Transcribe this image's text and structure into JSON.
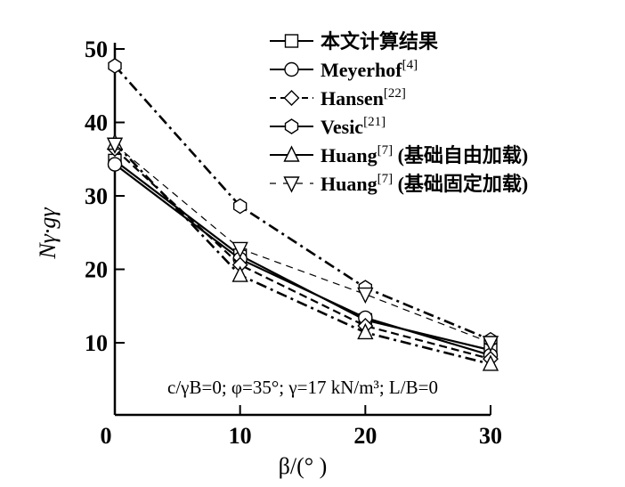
{
  "chart_data": {
    "type": "line",
    "title": "",
    "xlabel": "β/(° )",
    "ylabel": "Nγ·gγ",
    "x": [
      0,
      10,
      20,
      30
    ],
    "xlim": [
      0,
      30
    ],
    "ylim": [
      3,
      50
    ],
    "xticks": [
      "0",
      "10",
      "20",
      "30"
    ],
    "yticks": [
      "10",
      "20",
      "30",
      "40",
      "50"
    ],
    "grid": false,
    "legend_position": "top-right",
    "annotation": "c/γB=0; φ=35°; γ=17 kN/m³; L/B=0",
    "series": [
      {
        "name": "本文计算结果",
        "ref": "",
        "suffix": "",
        "marker": "square",
        "style": "solid",
        "values": [
          34.8,
          21.9,
          13.1,
          9.0
        ]
      },
      {
        "name": "Meyerhof",
        "ref": "[4]",
        "suffix": "",
        "marker": "circle",
        "style": "solid",
        "values": [
          34.3,
          21.4,
          13.4,
          8.3
        ]
      },
      {
        "name": "Hansen",
        "ref": "[22]",
        "suffix": "",
        "marker": "diamond",
        "style": "dashed",
        "values": [
          36.4,
          20.6,
          12.3,
          7.8
        ]
      },
      {
        "name": "Vesic",
        "ref": "[21]",
        "suffix": "",
        "marker": "hexagon",
        "style": "dashdot",
        "values": [
          47.7,
          28.6,
          17.5,
          10.4
        ]
      },
      {
        "name": "Huang",
        "ref": "[7]",
        "suffix": " (基础自由加载)",
        "marker": "triangle-up",
        "style": "dashdot",
        "values": [
          37.2,
          19.2,
          11.4,
          7.1
        ]
      },
      {
        "name": "Huang",
        "ref": "[7]",
        "suffix": " (基础固定加载)",
        "marker": "triangle-down",
        "style": "thindash",
        "values": [
          37.0,
          22.8,
          16.6,
          10.0
        ]
      }
    ]
  }
}
